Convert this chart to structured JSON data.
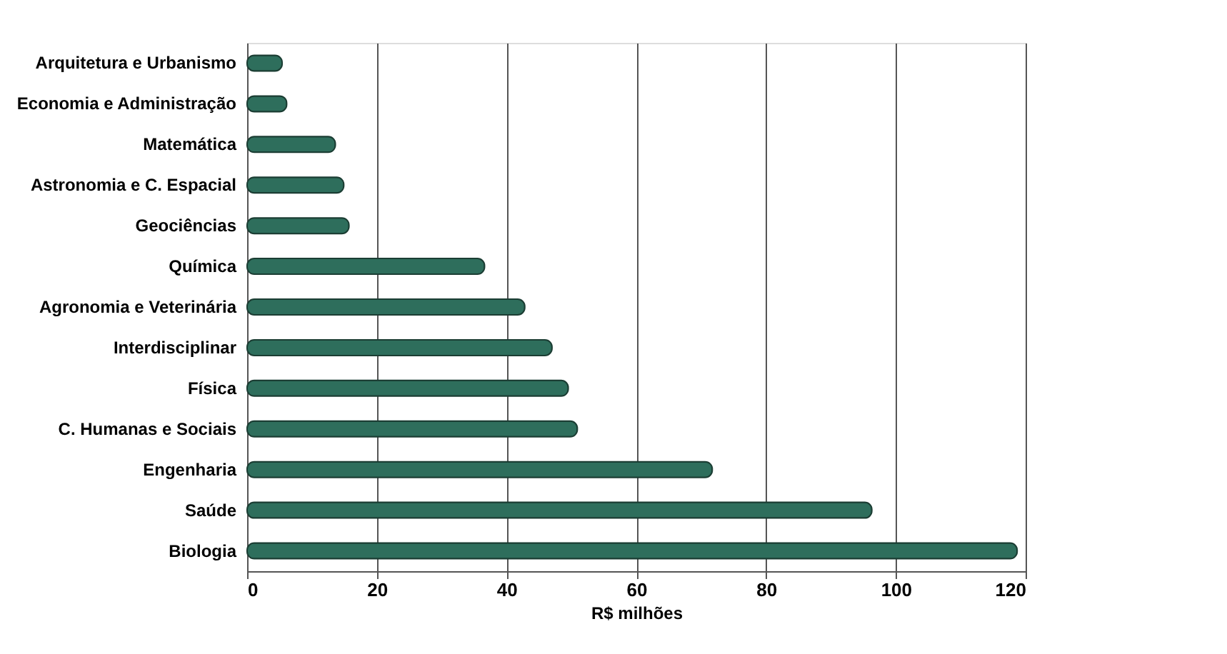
{
  "chart_data": {
    "type": "bar",
    "orientation": "horizontal",
    "xlabel": "R$ milhões",
    "categories": [
      "Arquitetura e Urbanismo",
      "Economia e Administração",
      "Matemática",
      "Astronomia e C. Espacial",
      "Geociências",
      "Química",
      "Agronomia e Veterinária",
      "Interdisciplinar",
      "Física",
      "C. Humanas e Sociais",
      "Engenharia",
      "Saúde",
      "Biologia"
    ],
    "values": [
      5.4,
      6.1,
      13.6,
      14.9,
      15.7,
      36.6,
      42.8,
      47,
      49.5,
      50.9,
      71.7,
      96.3,
      118.7
    ],
    "color": "#2e6e5c",
    "xlim": [
      0,
      120
    ],
    "xticks": [
      0,
      20,
      40,
      60,
      80,
      100,
      120
    ],
    "grid": "x"
  }
}
